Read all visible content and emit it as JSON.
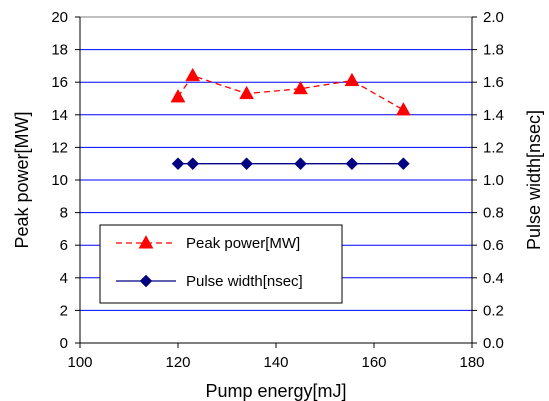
{
  "chart_data": {
    "type": "line",
    "title": "",
    "xlabel": "Pump energy[mJ]",
    "ylabel_left": "Peak power[MW]",
    "ylabel_right": "Pulse width[nsec]",
    "xlim": [
      100,
      180
    ],
    "x_ticks": [
      "100",
      "120",
      "140",
      "160",
      "180"
    ],
    "ylim_left": [
      0,
      20
    ],
    "y_ticks_left": [
      "0",
      "2",
      "4",
      "6",
      "8",
      "10",
      "12",
      "14",
      "16",
      "18",
      "20"
    ],
    "ylim_right": [
      0.0,
      2.0
    ],
    "y_ticks_right": [
      "0.0",
      "0.2",
      "0.4",
      "0.6",
      "0.8",
      "1.0",
      "1.2",
      "1.4",
      "1.6",
      "1.8",
      "2.0"
    ],
    "grid": "horizontal",
    "legend_position": "lower-left",
    "series": [
      {
        "name": "Peak power[MW]",
        "axis": "left",
        "color": "#ff0000",
        "line_style": "dashed",
        "marker": "triangle",
        "x": [
          120,
          123,
          134,
          145,
          155.5,
          166
        ],
        "y": [
          15.1,
          16.4,
          15.3,
          15.6,
          16.1,
          14.3
        ]
      },
      {
        "name": "Pulse width[nsec]",
        "axis": "right",
        "color": "#000080",
        "line_style": "solid",
        "marker": "diamond",
        "x": [
          120,
          123,
          134,
          145,
          155.5,
          166
        ],
        "y": [
          1.1,
          1.1,
          1.1,
          1.1,
          1.1,
          1.1
        ]
      }
    ],
    "colors": {
      "grid": "#0000ff",
      "plot_border": "#808080",
      "axis": "#000000"
    }
  }
}
